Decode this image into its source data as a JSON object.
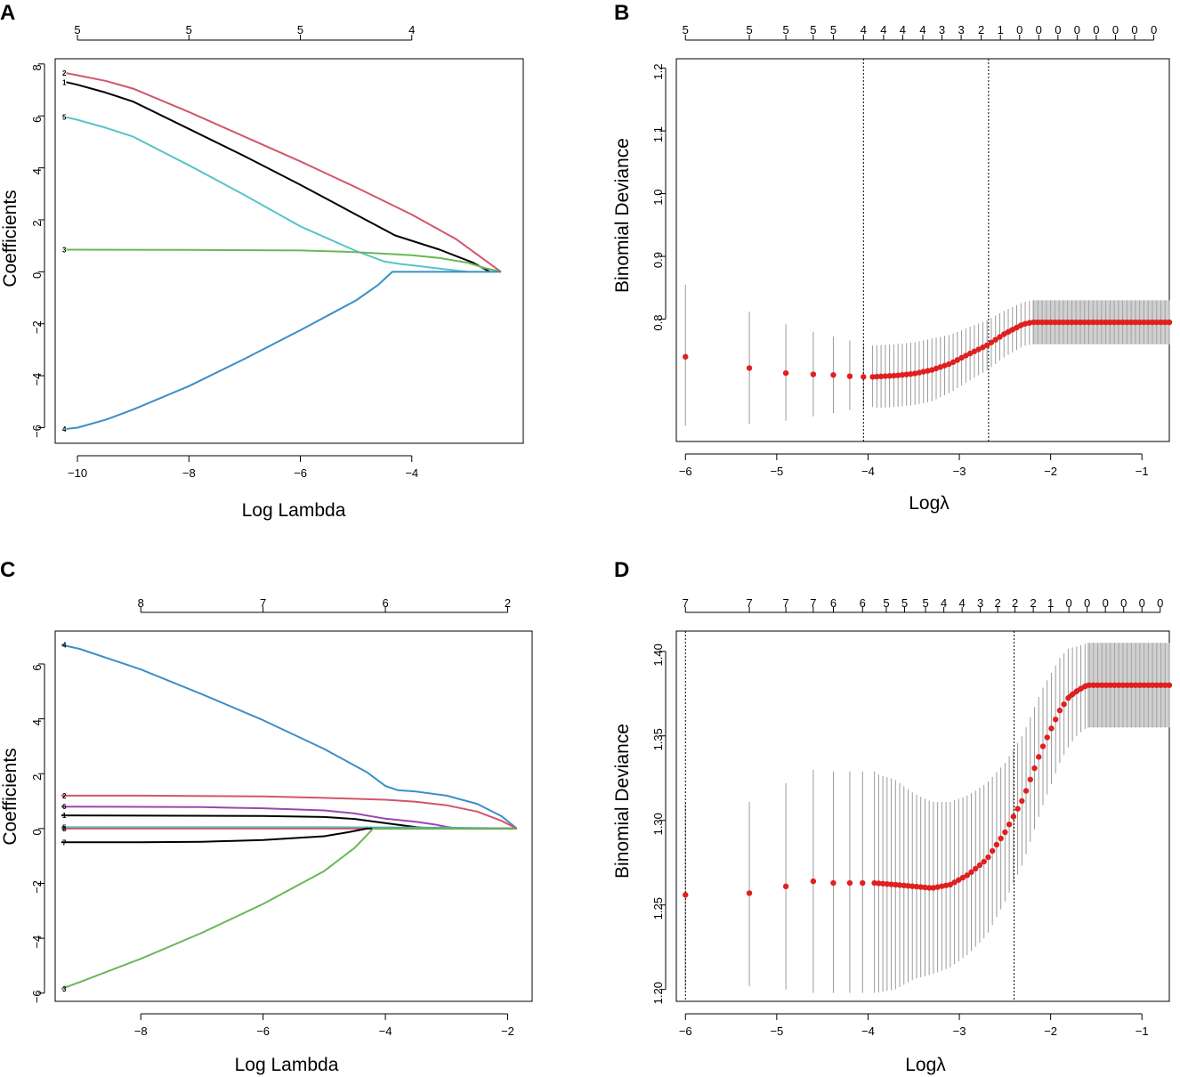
{
  "chart_data": [
    {
      "id": "A",
      "panel_label": "A",
      "type": "line",
      "xlabel": "Log Lambda",
      "ylabel": "Coefficients",
      "xlim": [
        -10.4,
        -2.0
      ],
      "ylim": [
        -6.6,
        8.2
      ],
      "xticks": [
        -10,
        -8,
        -6,
        -4
      ],
      "yticks": [
        8,
        6,
        4,
        2,
        0,
        -2,
        -4,
        -6
      ],
      "top_axis": [
        {
          "x": -10,
          "label": "5"
        },
        {
          "x": -8,
          "label": "5"
        },
        {
          "x": -6,
          "label": "5"
        },
        {
          "x": -4,
          "label": "4"
        }
      ],
      "series": [
        {
          "name": "2",
          "color": "#d2566b",
          "x": [
            -10.2,
            -9.5,
            -9,
            -8,
            -7,
            -6,
            -5,
            -4,
            -3.2,
            -2.4
          ],
          "y": [
            7.65,
            7.35,
            7.05,
            6.15,
            5.2,
            4.25,
            3.25,
            2.2,
            1.25,
            0
          ]
        },
        {
          "name": "1",
          "color": "#000000",
          "x": [
            -10.2,
            -10,
            -9.5,
            -9,
            -8,
            -7,
            -6,
            -5,
            -4.3,
            -3.5,
            -2.9,
            -2.6
          ],
          "y": [
            7.3,
            7.2,
            6.9,
            6.55,
            5.5,
            4.45,
            3.35,
            2.2,
            1.4,
            0.85,
            0.35,
            0
          ]
        },
        {
          "name": "5",
          "color": "#57c4c9",
          "x": [
            -10.2,
            -10,
            -9.5,
            -9,
            -8,
            -7,
            -6,
            -5,
            -4.5,
            -4.2,
            -3.8,
            -3.5,
            -3.0
          ],
          "y": [
            5.95,
            5.85,
            5.55,
            5.2,
            4.1,
            2.95,
            1.75,
            0.8,
            0.4,
            0.3,
            0.2,
            0.12,
            0
          ]
        },
        {
          "name": "3",
          "color": "#6ab758",
          "x": [
            -10.2,
            -8,
            -6,
            -5,
            -4,
            -3.5,
            -3,
            -2.7,
            -2.4
          ],
          "y": [
            0.85,
            0.84,
            0.82,
            0.76,
            0.64,
            0.53,
            0.35,
            0.15,
            0
          ]
        },
        {
          "name": "4",
          "color": "#3b8fc8",
          "x": [
            -10.2,
            -10,
            -9.5,
            -9,
            -8,
            -7,
            -6,
            -5,
            -4.6,
            -4.35,
            -4.0,
            -2.4
          ],
          "y": [
            -6.05,
            -6.0,
            -5.7,
            -5.3,
            -4.4,
            -3.35,
            -2.25,
            -1.1,
            -0.5,
            0,
            0,
            0
          ]
        }
      ]
    },
    {
      "id": "B",
      "panel_label": "B",
      "type": "scatter",
      "xlabel": "Logλ",
      "ylabel": "Binomial Deviance",
      "xlim": [
        -6.1,
        -0.7
      ],
      "ylim": [
        0.605,
        1.215
      ],
      "xticks": [
        -6,
        -5,
        -4,
        -3,
        -2,
        -1
      ],
      "yticks": [
        0.8,
        0.9,
        1.0,
        1.1,
        1.2
      ],
      "top_axis": [
        {
          "x": -6.0,
          "label": "5"
        },
        {
          "x": -5.3,
          "label": "5"
        },
        {
          "x": -4.9,
          "label": "5"
        },
        {
          "x": -4.6,
          "label": "5"
        },
        {
          "x": -4.38,
          "label": "5"
        },
        {
          "x": -4.05,
          "label": "4"
        },
        {
          "x": -3.83,
          "label": "4"
        },
        {
          "x": -3.62,
          "label": "4"
        },
        {
          "x": -3.4,
          "label": "4"
        },
        {
          "x": -3.19,
          "label": "3"
        },
        {
          "x": -2.98,
          "label": "3"
        },
        {
          "x": -2.76,
          "label": "2"
        },
        {
          "x": -2.55,
          "label": "1"
        },
        {
          "x": -2.34,
          "label": "0"
        },
        {
          "x": -2.13,
          "label": "0"
        },
        {
          "x": -1.92,
          "label": "0"
        },
        {
          "x": -1.71,
          "label": "0"
        },
        {
          "x": -1.5,
          "label": "0"
        },
        {
          "x": -1.29,
          "label": "0"
        },
        {
          "x": -1.08,
          "label": "0"
        },
        {
          "x": -0.87,
          "label": "0"
        }
      ],
      "vlines": [
        -4.05,
        -2.68
      ],
      "points": {
        "x": [
          -6.0,
          -5.3,
          -4.9,
          -4.6,
          -4.38,
          -4.2,
          -4.05,
          -3.95
        ],
        "y": [
          0.74,
          0.722,
          0.714,
          0.712,
          0.711,
          0.709,
          0.708,
          0.708
        ],
        "lower": [
          0.63,
          0.633,
          0.638,
          0.645,
          0.65,
          0.655,
          0.658,
          0.66
        ],
        "upper": [
          0.855,
          0.812,
          0.792,
          0.78,
          0.772,
          0.766,
          0.762,
          0.758
        ]
      },
      "curve": {
        "x": [
          -3.95,
          -3.7,
          -3.5,
          -3.3,
          -3.1,
          -2.9,
          -2.7,
          -2.5,
          -2.3,
          -2.2,
          -0.7
        ],
        "y": [
          0.708,
          0.71,
          0.713,
          0.719,
          0.729,
          0.744,
          0.758,
          0.777,
          0.792,
          0.795,
          0.795
        ],
        "halfwidth": [
          0.05,
          0.05,
          0.05,
          0.05,
          0.046,
          0.043,
          0.04,
          0.037,
          0.035,
          0.035,
          0.035
        ],
        "point_count": 70,
        "band_start_x": -3.95,
        "flat_start_x": -2.2
      }
    },
    {
      "id": "C",
      "panel_label": "C",
      "type": "line",
      "xlabel": "Log Lambda",
      "ylabel": "Coefficients",
      "xlim": [
        -9.4,
        -1.6
      ],
      "ylim": [
        -6.3,
        7.2
      ],
      "xticks": [
        -8,
        -6,
        -4,
        -2
      ],
      "yticks": [
        6,
        4,
        2,
        0,
        -2,
        -4,
        -6
      ],
      "top_axis": [
        {
          "x": -8,
          "label": "8"
        },
        {
          "x": -6,
          "label": "7"
        },
        {
          "x": -4,
          "label": "6"
        },
        {
          "x": -2,
          "label": "2"
        }
      ],
      "series": [
        {
          "name": "4",
          "color": "#3b8fc8",
          "x": [
            -9.3,
            -9,
            -8,
            -7,
            -6,
            -5,
            -4.3,
            -4.0,
            -3.8,
            -3.5,
            -3.0,
            -2.5,
            -2.1,
            -1.85
          ],
          "y": [
            6.7,
            6.55,
            5.8,
            4.9,
            3.95,
            2.9,
            2.05,
            1.55,
            1.4,
            1.35,
            1.2,
            0.9,
            0.45,
            0
          ]
        },
        {
          "name": "2",
          "color": "#d2566b",
          "x": [
            -9.3,
            -8,
            -6,
            -5,
            -4,
            -3.5,
            -3,
            -2.5,
            -2.1,
            -1.85
          ],
          "y": [
            1.2,
            1.2,
            1.17,
            1.12,
            1.05,
            0.98,
            0.85,
            0.62,
            0.28,
            0
          ]
        },
        {
          "name": "6",
          "color": "#9b46b0",
          "x": [
            -9.3,
            -7,
            -6,
            -5,
            -4.5,
            -4,
            -3.5,
            -3.2,
            -3.0,
            -2.8
          ],
          "y": [
            0.8,
            0.78,
            0.74,
            0.66,
            0.55,
            0.36,
            0.25,
            0.15,
            0.06,
            0
          ]
        },
        {
          "name": "1",
          "color": "#000000",
          "x": [
            -9.3,
            -6,
            -5,
            -4.5,
            -4.0,
            -3.5,
            -3.2
          ],
          "y": [
            0.48,
            0.46,
            0.42,
            0.35,
            0.2,
            0.05,
            0
          ]
        },
        {
          "name": "5",
          "color": "#57c4c9",
          "x": [
            -9.3,
            -5,
            -3,
            -1.85
          ],
          "y": [
            0.05,
            0.05,
            0.03,
            0
          ]
        },
        {
          "name": "8",
          "color": "#d2566b",
          "x": [
            -9.3,
            -1.85
          ],
          "y": [
            0,
            0
          ]
        },
        {
          "name": "7",
          "color": "#000000",
          "x": [
            -9.3,
            -8,
            -7,
            -6,
            -5,
            -4.6,
            -4.3,
            -1.85
          ],
          "y": [
            -0.5,
            -0.5,
            -0.48,
            -0.42,
            -0.28,
            -0.13,
            0,
            0
          ]
        },
        {
          "name": "3",
          "color": "#6ab758",
          "x": [
            -9.3,
            -9,
            -8,
            -7,
            -6,
            -5,
            -4.5,
            -4.2,
            -1.85
          ],
          "y": [
            -5.85,
            -5.6,
            -4.75,
            -3.8,
            -2.75,
            -1.55,
            -0.7,
            0,
            0
          ]
        }
      ]
    },
    {
      "id": "D",
      "panel_label": "D",
      "type": "scatter",
      "xlabel": "Logλ",
      "ylabel": "Binomial Deviance",
      "xlim": [
        -6.1,
        -0.7
      ],
      "ylim": [
        1.193,
        1.412
      ],
      "xticks": [
        -6,
        -5,
        -4,
        -3,
        -2,
        -1
      ],
      "yticks": [
        1.2,
        1.25,
        1.3,
        1.35,
        1.4
      ],
      "top_axis": [
        {
          "x": -6.0,
          "label": "7"
        },
        {
          "x": -5.3,
          "label": "7"
        },
        {
          "x": -4.9,
          "label": "7"
        },
        {
          "x": -4.6,
          "label": "7"
        },
        {
          "x": -4.38,
          "label": "6"
        },
        {
          "x": -4.06,
          "label": "6"
        },
        {
          "x": -3.8,
          "label": "5"
        },
        {
          "x": -3.6,
          "label": "5"
        },
        {
          "x": -3.37,
          "label": "5"
        },
        {
          "x": -3.17,
          "label": "4"
        },
        {
          "x": -2.97,
          "label": "4"
        },
        {
          "x": -2.77,
          "label": "3"
        },
        {
          "x": -2.58,
          "label": "2"
        },
        {
          "x": -2.39,
          "label": "2"
        },
        {
          "x": -2.19,
          "label": "2"
        },
        {
          "x": -2.0,
          "label": "1"
        },
        {
          "x": -1.8,
          "label": "0"
        },
        {
          "x": -1.6,
          "label": "0"
        },
        {
          "x": -1.4,
          "label": "0"
        },
        {
          "x": -1.2,
          "label": "0"
        },
        {
          "x": -1.0,
          "label": "0"
        },
        {
          "x": -0.8,
          "label": "0"
        }
      ],
      "vlines": [
        -6.0,
        -2.4
      ],
      "points": {
        "x": [
          -6.0,
          -5.3,
          -4.9,
          -4.6,
          -4.38,
          -4.2,
          -4.06,
          -3.93
        ],
        "y": [
          1.256,
          1.257,
          1.261,
          1.264,
          1.263,
          1.263,
          1.263,
          1.263
        ],
        "lower": [
          1.2,
          1.202,
          1.2,
          1.198,
          1.198,
          1.198,
          1.198,
          1.198
        ],
        "upper": [
          1.311,
          1.311,
          1.322,
          1.33,
          1.329,
          1.329,
          1.329,
          1.329
        ]
      },
      "curve": {
        "x": [
          -3.93,
          -3.7,
          -3.5,
          -3.3,
          -3.1,
          -2.9,
          -2.7,
          -2.5,
          -2.3,
          -2.1,
          -1.9,
          -1.8,
          -1.7,
          -1.6,
          -0.7
        ],
        "y": [
          1.263,
          1.262,
          1.261,
          1.26,
          1.262,
          1.268,
          1.277,
          1.293,
          1.313,
          1.342,
          1.365,
          1.373,
          1.377,
          1.38,
          1.38
        ],
        "halfwidth": [
          0.065,
          0.062,
          0.055,
          0.051,
          0.049,
          0.047,
          0.045,
          0.041,
          0.038,
          0.035,
          0.031,
          0.029,
          0.026,
          0.025,
          0.025
        ],
        "point_count": 70,
        "band_start_x": -3.93,
        "flat_start_x": -1.6
      }
    }
  ]
}
